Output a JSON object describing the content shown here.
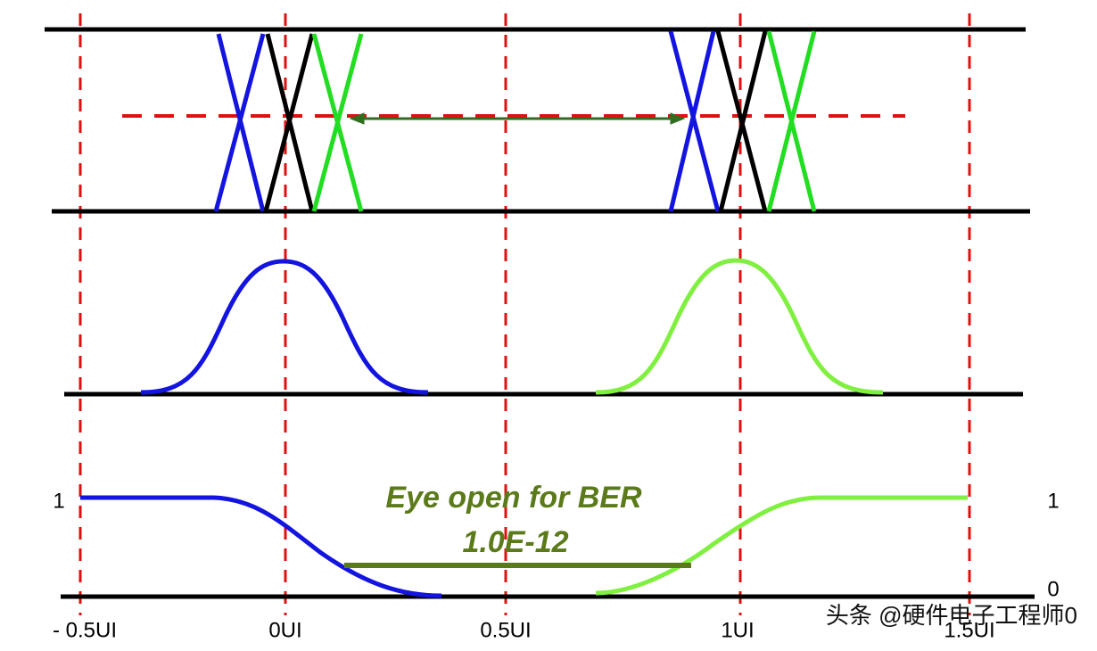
{
  "annotation": {
    "line1": "Eye open for BER",
    "line2": "1.0E-12"
  },
  "x_labels": [
    "- 0.5UI",
    "0UI",
    "0.5UI",
    "1UI",
    "1.5UI"
  ],
  "y_labels": {
    "left_one": "1",
    "right_one": "1",
    "right_zero": "0"
  },
  "watermark": "头条 @硬件电子工程师0"
}
